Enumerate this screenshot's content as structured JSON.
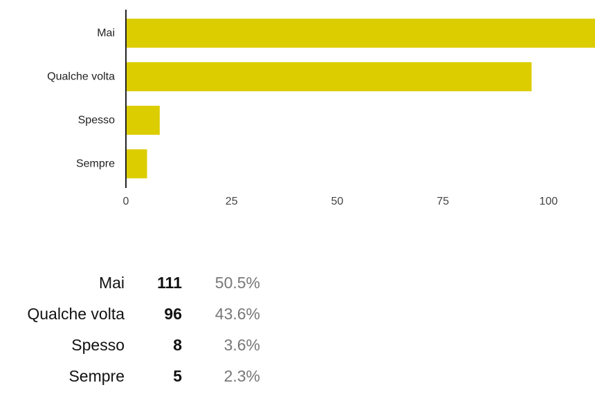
{
  "chart_data": {
    "type": "bar",
    "orientation": "horizontal",
    "categories": [
      "Mai",
      "Qualche volta",
      "Spesso",
      "Sempre"
    ],
    "values": [
      111,
      96,
      8,
      5
    ],
    "xticks": [
      "0",
      "25",
      "50",
      "75",
      "100"
    ],
    "xlim": [
      0,
      111
    ],
    "title": "",
    "xlabel": "",
    "ylabel": "",
    "grid": false,
    "bar_color": "#dccd00"
  },
  "summary": {
    "rows": [
      {
        "label": "Mai",
        "count": "111",
        "percent": "50.5%"
      },
      {
        "label": "Qualche volta",
        "count": "96",
        "percent": "43.6%"
      },
      {
        "label": "Spesso",
        "count": "8",
        "percent": "3.6%"
      },
      {
        "label": "Sempre",
        "count": "5",
        "percent": "2.3%"
      }
    ]
  }
}
